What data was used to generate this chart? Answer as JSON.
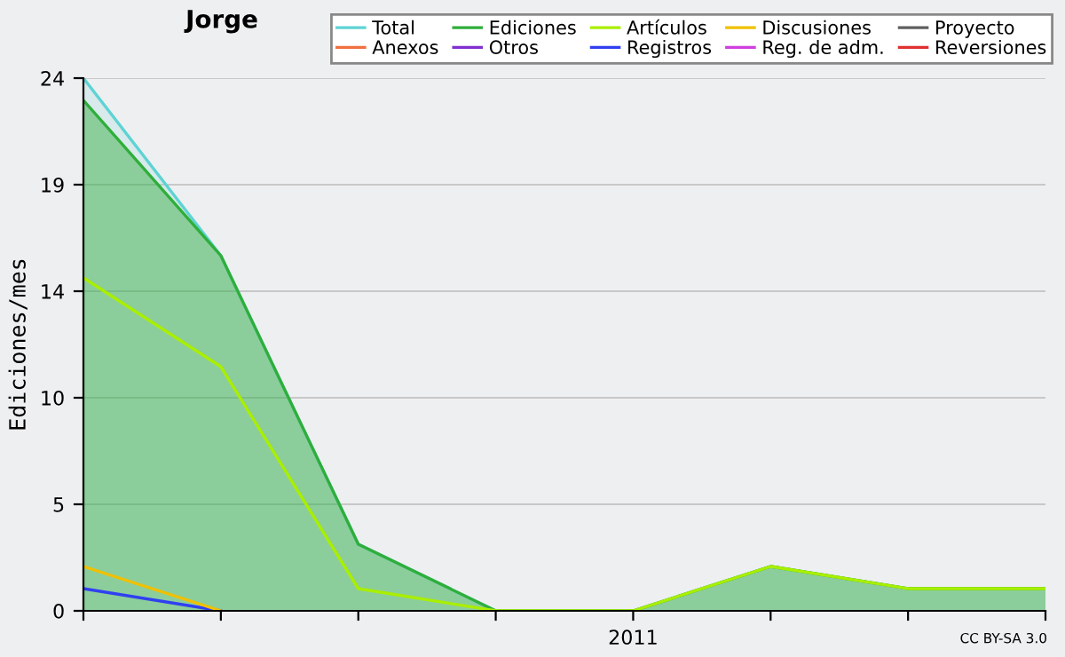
{
  "chart_data": {
    "type": "line",
    "title": "Jorge",
    "ylabel": "Ediciones/mes",
    "categories": [
      null,
      null,
      null,
      null,
      "2011",
      null,
      null,
      null
    ],
    "ylim": [
      0,
      24
    ],
    "yticks": [
      0,
      {
        "value": 4.8,
        "label": "5"
      },
      {
        "value": 9.6,
        "label": "10"
      },
      {
        "value": 14.4,
        "label": "14"
      },
      {
        "value": 19.2,
        "label": "19"
      },
      24
    ],
    "grid": "y",
    "legend": "top right",
    "annotations": [
      "CC BY-SA 3.0"
    ],
    "series": [
      {
        "name": "Total",
        "type": "area",
        "color": "#5fd3d3",
        "values": [
          24,
          16,
          3,
          0,
          0,
          2,
          1,
          1
        ]
      },
      {
        "name": "Anexos",
        "color": "#f07040",
        "values": [
          null,
          null,
          null,
          null,
          null,
          null,
          null,
          null
        ]
      },
      {
        "name": "Ediciones",
        "type": "area",
        "color": "#2fae3a",
        "values": [
          23,
          16,
          3,
          0,
          0,
          2,
          1,
          1
        ]
      },
      {
        "name": "Otros",
        "color": "#8030d0",
        "values": [
          null,
          null,
          null,
          null,
          null,
          null,
          null,
          null
        ]
      },
      {
        "name": "Artículos",
        "color": "#aaee00",
        "values": [
          15,
          11,
          1,
          0,
          0,
          2,
          1,
          1
        ]
      },
      {
        "name": "Registros",
        "color": "#3040f0",
        "values": [
          1,
          0,
          null,
          null,
          null,
          null,
          null,
          null
        ]
      },
      {
        "name": "Discusiones",
        "color": "#f0c000",
        "values": [
          2,
          0,
          null,
          null,
          null,
          null,
          null,
          null
        ]
      },
      {
        "name": "Reg. de adm.",
        "color": "#d040e0",
        "values": [
          null,
          null,
          null,
          null,
          null,
          null,
          null,
          null
        ]
      },
      {
        "name": "Proyecto",
        "color": "#606060",
        "values": [
          null,
          null,
          null,
          null,
          null,
          null,
          null,
          null
        ]
      },
      {
        "name": "Reversiones",
        "color": "#e03030",
        "values": [
          null,
          null,
          null,
          null,
          null,
          null,
          null,
          null
        ]
      }
    ]
  }
}
